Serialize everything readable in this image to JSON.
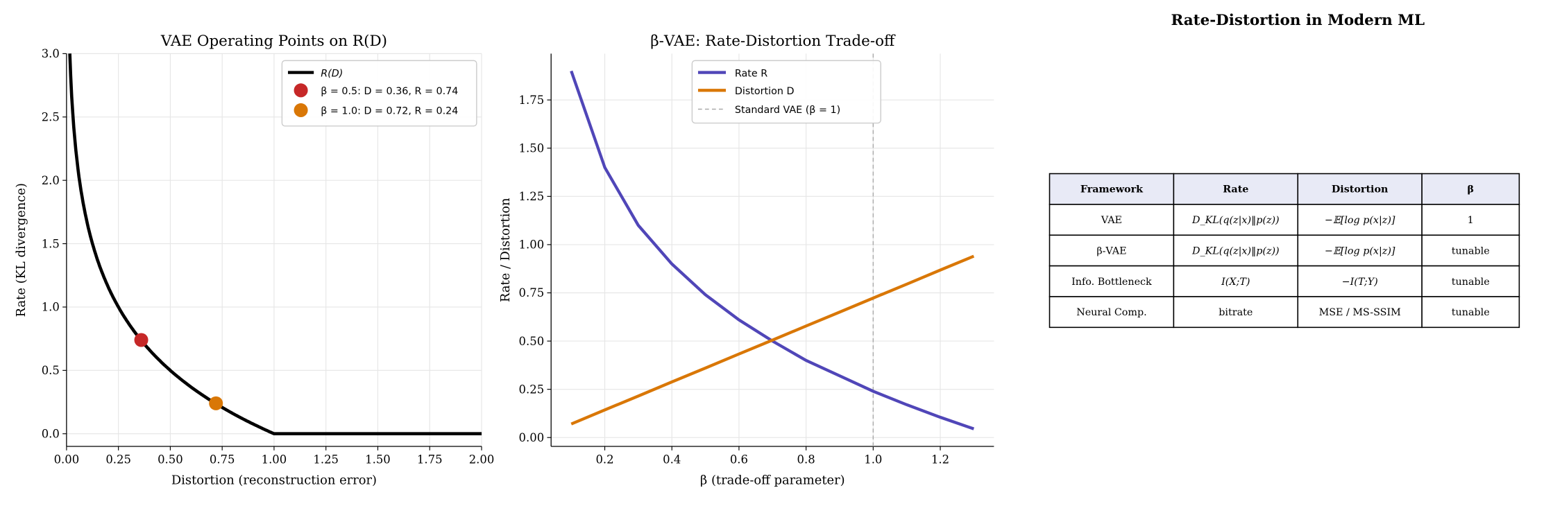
{
  "figure_title": "Rate-Distortion in Modern ML",
  "chart_data": [
    {
      "type": "line",
      "title": "VAE Operating Points on R(D)",
      "xlabel": "Distortion (reconstruction error)",
      "ylabel": "Rate (KL divergence)",
      "xlim": [
        0,
        2
      ],
      "ylim": [
        -0.1,
        3.0
      ],
      "xticks": [
        0,
        0.25,
        0.5,
        0.75,
        1.0,
        1.25,
        1.5,
        1.75,
        2.0
      ],
      "xtick_labels": [
        "0.00",
        "0.25",
        "0.50",
        "0.75",
        "1.00",
        "1.25",
        "1.50",
        "1.75",
        "2.00"
      ],
      "yticks": [
        0,
        0.5,
        1.0,
        1.5,
        2.0,
        2.5,
        3.0
      ],
      "ytick_labels": [
        "0.0",
        "0.5",
        "1.0",
        "1.5",
        "2.0",
        "2.5",
        "3.0"
      ],
      "grid": true,
      "legend_position": "top-right",
      "curve": {
        "name": "R(D)",
        "formula": "max(0, 0.5*log2(1/D))",
        "color": "#000000"
      },
      "points": [
        {
          "name": "β = 0.5: D = 0.36, R = 0.74",
          "x": 0.36,
          "y": 0.74,
          "color": "#c62828"
        },
        {
          "name": "β = 1.0: D = 0.72, R = 0.24",
          "x": 0.72,
          "y": 0.24,
          "color": "#d97706"
        }
      ]
    },
    {
      "type": "line",
      "title": "β-VAE: Rate-Distortion Trade-off",
      "xlabel": "β (trade-off parameter)",
      "ylabel": "Rate / Distortion",
      "xlim": [
        0.04,
        1.36
      ],
      "ylim": [
        -0.046,
        1.99
      ],
      "xticks": [
        0.2,
        0.4,
        0.6,
        0.8,
        1.0,
        1.2
      ],
      "xtick_labels": [
        "0.2",
        "0.4",
        "0.6",
        "0.8",
        "1.0",
        "1.2"
      ],
      "yticks": [
        0,
        0.25,
        0.5,
        0.75,
        1.0,
        1.25,
        1.5,
        1.75
      ],
      "ytick_labels": [
        "0.00",
        "0.25",
        "0.50",
        "0.75",
        "1.00",
        "1.25",
        "1.50",
        "1.75"
      ],
      "grid": true,
      "legend_position": "top-center",
      "x": [
        0.1,
        0.2,
        0.3,
        0.4,
        0.5,
        0.6,
        0.7,
        0.8,
        0.9,
        1.0,
        1.1,
        1.2,
        1.3
      ],
      "series": [
        {
          "name": "Rate R",
          "color": "#5046b8",
          "values": [
            1.9,
            1.4,
            1.1,
            0.9,
            0.74,
            0.61,
            0.5,
            0.4,
            0.32,
            0.24,
            0.17,
            0.105,
            0.045
          ]
        },
        {
          "name": "Distortion D",
          "color": "#d97706",
          "values": [
            0.07,
            0.143,
            0.215,
            0.288,
            0.36,
            0.433,
            0.505,
            0.578,
            0.65,
            0.723,
            0.795,
            0.868,
            0.94
          ]
        }
      ],
      "vline": {
        "name": "Standard VAE (β = 1)",
        "x": 1.0,
        "color": "#aaaaaa"
      }
    }
  ],
  "table": {
    "headers": [
      "Framework",
      "Rate",
      "Distortion",
      "β"
    ],
    "rows": [
      [
        "VAE",
        "D_KL(q(z|x)‖p(z))",
        "−𝔼[log p(x|z)]",
        "1"
      ],
      [
        "β-VAE",
        "D_KL(q(z|x)‖p(z))",
        "−𝔼[log p(x|z)]",
        "tunable"
      ],
      [
        "Info. Bottleneck",
        "I(X;T)",
        "−I(T;Y)",
        "tunable"
      ],
      [
        "Neural Comp.",
        "bitrate",
        "MSE / MS-SSIM",
        "tunable"
      ]
    ],
    "header_color": "#e8eaf6"
  }
}
